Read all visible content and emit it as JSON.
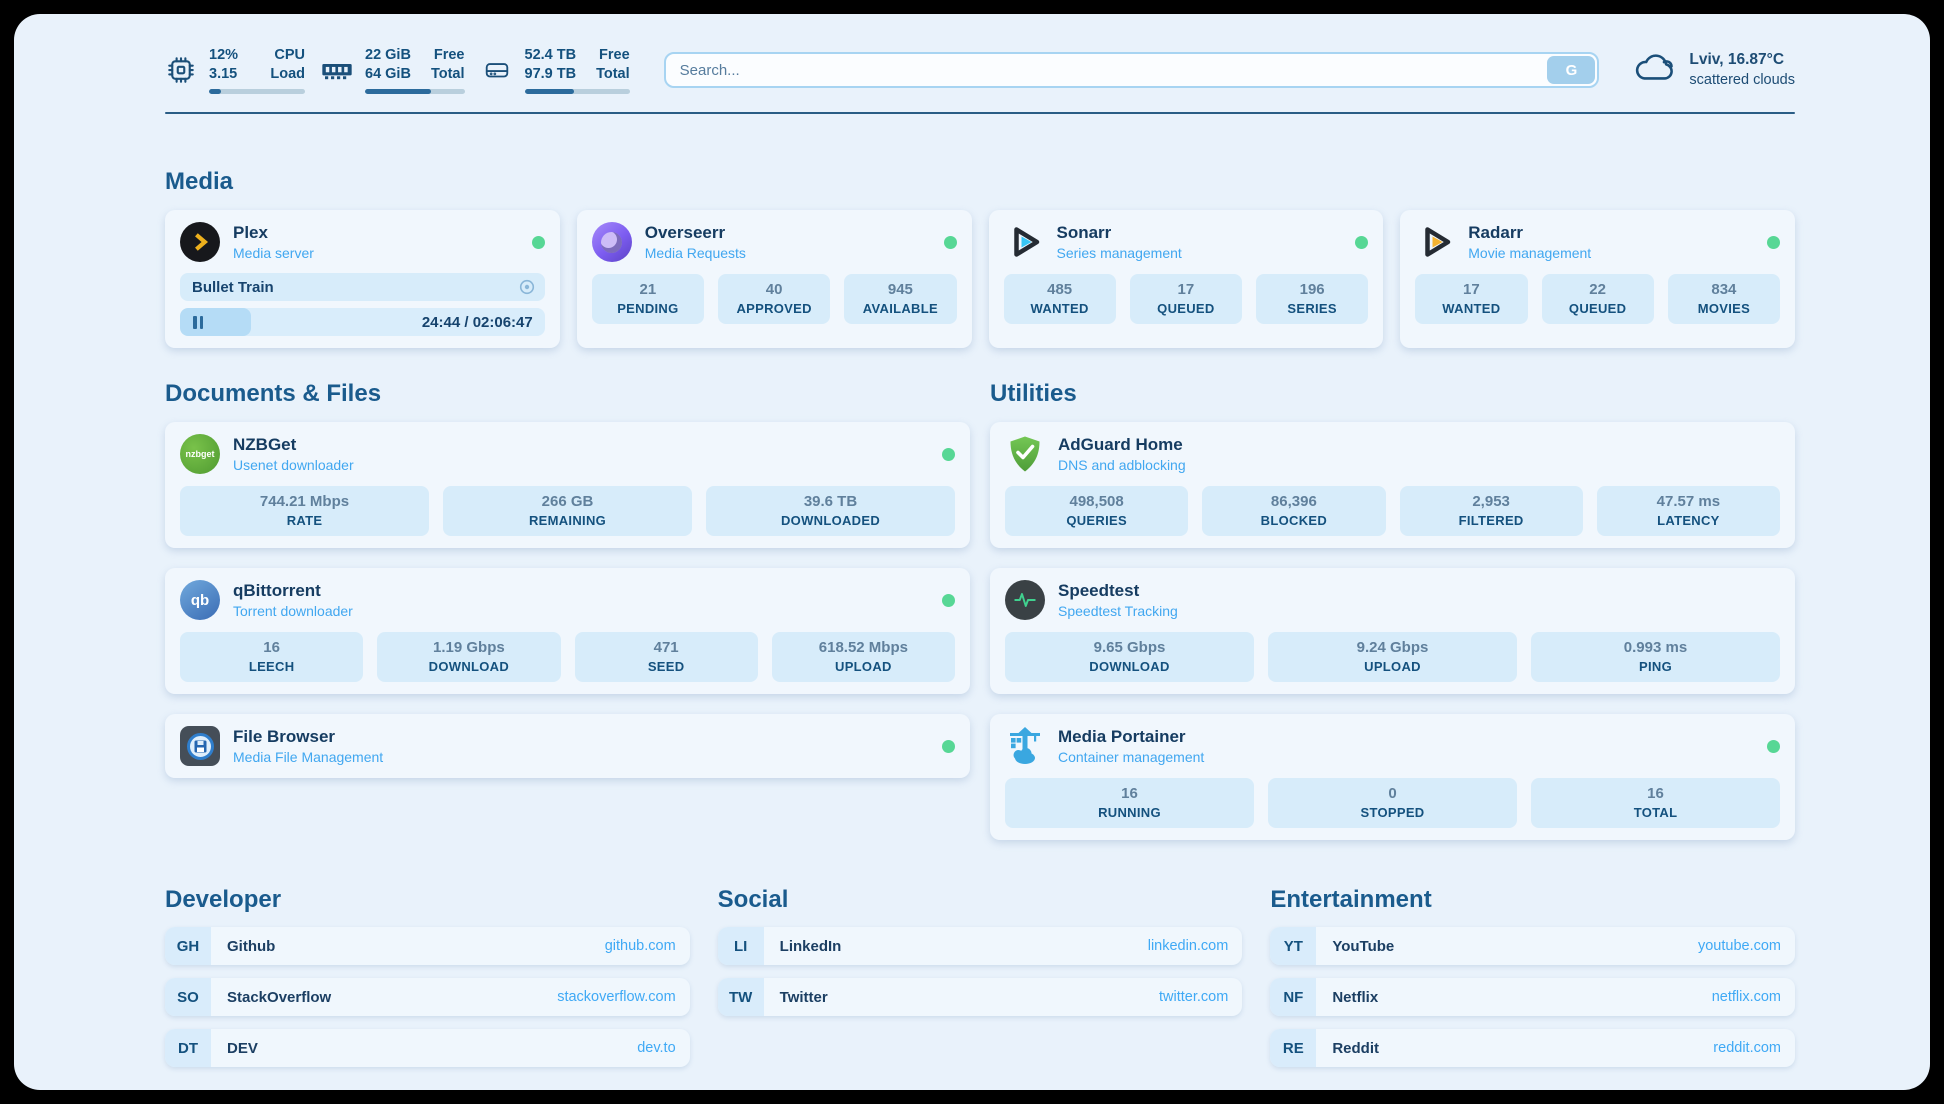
{
  "header": {
    "stats": [
      {
        "icon": "cpu-icon",
        "values": [
          "12%",
          "3.15"
        ],
        "labels": [
          "CPU",
          "Load"
        ],
        "progress": 12
      },
      {
        "icon": "memory-icon",
        "values": [
          "22 GiB",
          "64 GiB"
        ],
        "labels": [
          "Free",
          "Total"
        ],
        "progress": 66
      },
      {
        "icon": "storage-icon",
        "values": [
          "52.4 TB",
          "97.9 TB"
        ],
        "labels": [
          "Free",
          "Total"
        ],
        "progress": 47
      }
    ],
    "search": {
      "placeholder": "Search...",
      "button_label": "G"
    },
    "weather": {
      "location": "Lviv, 16.87°C",
      "condition": "scattered clouds"
    }
  },
  "sections": {
    "media": {
      "title": "Media",
      "cards": [
        {
          "name": "Plex",
          "subtitle": "Media server",
          "online": true,
          "now_playing": {
            "title": "Bullet Train",
            "time_display": "24:44 / 02:06:47",
            "progress": 19.5
          }
        },
        {
          "name": "Overseerr",
          "subtitle": "Media Requests",
          "online": true,
          "stats": [
            {
              "value": "21",
              "label": "PENDING"
            },
            {
              "value": "40",
              "label": "APPROVED"
            },
            {
              "value": "945",
              "label": "AVAILABLE"
            }
          ]
        },
        {
          "name": "Sonarr",
          "subtitle": "Series management",
          "online": true,
          "stats": [
            {
              "value": "485",
              "label": "WANTED"
            },
            {
              "value": "17",
              "label": "QUEUED"
            },
            {
              "value": "196",
              "label": "SERIES"
            }
          ]
        },
        {
          "name": "Radarr",
          "subtitle": "Movie management",
          "online": true,
          "stats": [
            {
              "value": "17",
              "label": "WANTED"
            },
            {
              "value": "22",
              "label": "QUEUED"
            },
            {
              "value": "834",
              "label": "MOVIES"
            }
          ]
        }
      ]
    },
    "documents": {
      "title": "Documents & Files",
      "cards": [
        {
          "name": "NZBGet",
          "subtitle": "Usenet downloader",
          "online": true,
          "icon_text": "nzbget",
          "stats": [
            {
              "value": "744.21 Mbps",
              "label": "RATE"
            },
            {
              "value": "266 GB",
              "label": "REMAINING"
            },
            {
              "value": "39.6 TB",
              "label": "DOWNLOADED"
            }
          ]
        },
        {
          "name": "qBittorrent",
          "subtitle": "Torrent downloader",
          "online": true,
          "icon_text": "qb",
          "stats": [
            {
              "value": "16",
              "label": "LEECH"
            },
            {
              "value": "1.19 Gbps",
              "label": "DOWNLOAD"
            },
            {
              "value": "471",
              "label": "SEED"
            },
            {
              "value": "618.52 Mbps",
              "label": "UPLOAD"
            }
          ]
        },
        {
          "name": "File Browser",
          "subtitle": "Media File Management",
          "online": true
        }
      ]
    },
    "utilities": {
      "title": "Utilities",
      "cards": [
        {
          "name": "AdGuard Home",
          "subtitle": "DNS and adblocking",
          "stats": [
            {
              "value": "498,508",
              "label": "QUERIES"
            },
            {
              "value": "86,396",
              "label": "BLOCKED"
            },
            {
              "value": "2,953",
              "label": "FILTERED"
            },
            {
              "value": "47.57 ms",
              "label": "LATENCY"
            }
          ]
        },
        {
          "name": "Speedtest",
          "subtitle": "Speedtest Tracking",
          "stats": [
            {
              "value": "9.65 Gbps",
              "label": "DOWNLOAD"
            },
            {
              "value": "9.24 Gbps",
              "label": "UPLOAD"
            },
            {
              "value": "0.993 ms",
              "label": "PING"
            }
          ]
        },
        {
          "name": "Media Portainer",
          "subtitle": "Container management",
          "online": true,
          "stats": [
            {
              "value": "16",
              "label": "RUNNING"
            },
            {
              "value": "0",
              "label": "STOPPED"
            },
            {
              "value": "16",
              "label": "TOTAL"
            }
          ]
        }
      ]
    },
    "developer": {
      "title": "Developer",
      "links": [
        {
          "badge": "GH",
          "name": "Github",
          "url": "github.com"
        },
        {
          "badge": "SO",
          "name": "StackOverflow",
          "url": "stackoverflow.com"
        },
        {
          "badge": "DT",
          "name": "DEV",
          "url": "dev.to"
        }
      ]
    },
    "social": {
      "title": "Social",
      "links": [
        {
          "badge": "LI",
          "name": "LinkedIn",
          "url": "linkedin.com"
        },
        {
          "badge": "TW",
          "name": "Twitter",
          "url": "twitter.com"
        }
      ]
    },
    "entertainment": {
      "title": "Entertainment",
      "links": [
        {
          "badge": "YT",
          "name": "YouTube",
          "url": "youtube.com"
        },
        {
          "badge": "NF",
          "name": "Netflix",
          "url": "netflix.com"
        },
        {
          "badge": "RE",
          "name": "Reddit",
          "url": "reddit.com"
        }
      ]
    }
  },
  "colors": {
    "accent_link": "#3fa9f5",
    "status_online": "#57d795",
    "navy_text": "#14517e",
    "panel_bg": "#e9f2fb"
  }
}
